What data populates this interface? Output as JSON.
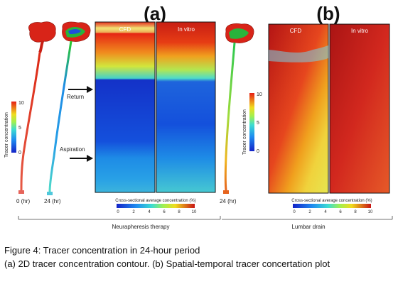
{
  "figure": {
    "panel_a_label": "(a)",
    "panel_b_label": "(b)",
    "cfd_label": "CFD",
    "invitro_label": "In vitro",
    "tracer_axis_label": "Tracer concentration",
    "tracer_ticks": [
      "10",
      "5",
      "0"
    ],
    "time_start_label": "0 (hr)",
    "time_end_label": "24 (hr)",
    "return_label": "Return",
    "aspiration_label": "Aspiration",
    "bar_title": "Cross-sectional average concentration (%)",
    "bar_ticks": [
      "0",
      "2",
      "4",
      "6",
      "8",
      "10"
    ],
    "group_a_label": "Neurapheresis therapy",
    "group_b_label": "Lumbar drain",
    "colors": {
      "low": "#0a1ec8",
      "mid": "#3cd2d2",
      "high": "#f03214",
      "frame": "#111111"
    }
  },
  "caption": {
    "line1": "Figure 4: Tracer concentration in 24-hour period",
    "line2": "(a) 2D tracer concentration contour. (b) Spatial-temporal tracer concertation plot"
  }
}
